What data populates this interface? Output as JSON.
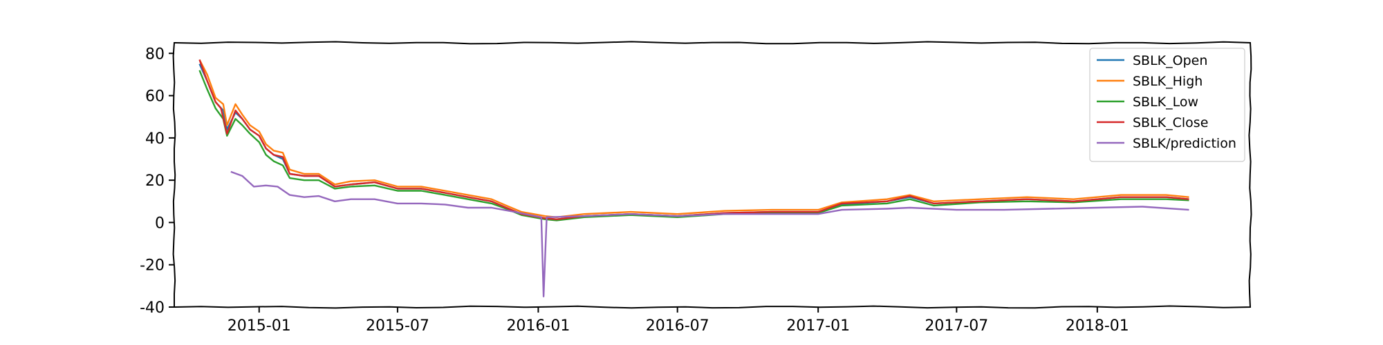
{
  "chart_data": {
    "type": "line",
    "title": "",
    "xlabel": "",
    "ylabel": "",
    "xlim": [
      "2014-09-12",
      "2018-07-20"
    ],
    "ylim": [
      -40,
      85
    ],
    "yticks": [
      80,
      60,
      40,
      20,
      0,
      -20,
      -40
    ],
    "xticks": [
      "2015-01",
      "2015-07",
      "2016-01",
      "2016-07",
      "2017-01",
      "2017-07",
      "2018-01"
    ],
    "grid": false,
    "legend_position": "top-right",
    "series": [
      {
        "name": "SBLK_Open",
        "color": "#1f77b4",
        "points": [
          [
            "2014-10-15",
            75
          ],
          [
            "2014-10-25",
            67
          ],
          [
            "2014-11-05",
            57
          ],
          [
            "2014-11-15",
            53
          ],
          [
            "2014-11-20",
            44
          ],
          [
            "2014-12-01",
            52
          ],
          [
            "2014-12-10",
            49
          ],
          [
            "2014-12-20",
            44
          ],
          [
            "2015-01-01",
            41
          ],
          [
            "2015-01-10",
            35
          ],
          [
            "2015-01-20",
            32
          ],
          [
            "2015-02-01",
            30
          ],
          [
            "2015-02-10",
            23
          ],
          [
            "2015-03-01",
            22
          ],
          [
            "2015-03-20",
            22
          ],
          [
            "2015-04-10",
            17
          ],
          [
            "2015-05-01",
            18
          ],
          [
            "2015-06-01",
            19
          ],
          [
            "2015-07-01",
            16
          ],
          [
            "2015-08-01",
            16
          ],
          [
            "2015-09-01",
            14
          ],
          [
            "2015-10-01",
            12
          ],
          [
            "2015-11-01",
            10
          ],
          [
            "2015-11-20",
            7
          ],
          [
            "2015-12-10",
            4
          ],
          [
            "2016-01-10",
            2
          ],
          [
            "2016-01-25",
            1.5
          ],
          [
            "2016-03-01",
            3
          ],
          [
            "2016-05-01",
            4
          ],
          [
            "2016-07-01",
            3
          ],
          [
            "2016-09-01",
            4.5
          ],
          [
            "2016-11-01",
            5
          ],
          [
            "2017-01-01",
            5
          ],
          [
            "2017-02-01",
            8.5
          ],
          [
            "2017-04-01",
            10
          ],
          [
            "2017-05-01",
            12
          ],
          [
            "2017-06-01",
            9
          ],
          [
            "2017-08-01",
            10
          ],
          [
            "2017-10-01",
            11
          ],
          [
            "2017-12-01",
            10
          ],
          [
            "2018-02-01",
            12
          ],
          [
            "2018-04-01",
            12
          ],
          [
            "2018-05-01",
            11
          ]
        ]
      },
      {
        "name": "SBLK_High",
        "color": "#ff7f0e",
        "points": [
          [
            "2014-10-15",
            77
          ],
          [
            "2014-10-25",
            70
          ],
          [
            "2014-11-05",
            59
          ],
          [
            "2014-11-15",
            56
          ],
          [
            "2014-11-20",
            46
          ],
          [
            "2014-12-01",
            56
          ],
          [
            "2014-12-10",
            51
          ],
          [
            "2014-12-20",
            46
          ],
          [
            "2015-01-01",
            43
          ],
          [
            "2015-01-10",
            37
          ],
          [
            "2015-01-20",
            34
          ],
          [
            "2015-02-01",
            33
          ],
          [
            "2015-02-10",
            25
          ],
          [
            "2015-03-01",
            23
          ],
          [
            "2015-03-20",
            23
          ],
          [
            "2015-04-10",
            18
          ],
          [
            "2015-05-01",
            19.5
          ],
          [
            "2015-06-01",
            20
          ],
          [
            "2015-07-01",
            17
          ],
          [
            "2015-08-01",
            17
          ],
          [
            "2015-09-01",
            15
          ],
          [
            "2015-10-01",
            13
          ],
          [
            "2015-11-01",
            11
          ],
          [
            "2015-11-20",
            8
          ],
          [
            "2015-12-10",
            5
          ],
          [
            "2016-01-10",
            3
          ],
          [
            "2016-01-25",
            2.5
          ],
          [
            "2016-03-01",
            4
          ],
          [
            "2016-05-01",
            5
          ],
          [
            "2016-07-01",
            4
          ],
          [
            "2016-09-01",
            5.5
          ],
          [
            "2016-11-01",
            6
          ],
          [
            "2017-01-01",
            6
          ],
          [
            "2017-02-01",
            9.5
          ],
          [
            "2017-04-01",
            11
          ],
          [
            "2017-05-01",
            13
          ],
          [
            "2017-06-01",
            10
          ],
          [
            "2017-08-01",
            11
          ],
          [
            "2017-10-01",
            12
          ],
          [
            "2017-12-01",
            11
          ],
          [
            "2018-02-01",
            13
          ],
          [
            "2018-04-01",
            13
          ],
          [
            "2018-05-01",
            12
          ]
        ]
      },
      {
        "name": "SBLK_Low",
        "color": "#2ca02c",
        "points": [
          [
            "2014-10-15",
            72
          ],
          [
            "2014-10-25",
            63
          ],
          [
            "2014-11-05",
            54
          ],
          [
            "2014-11-15",
            49
          ],
          [
            "2014-11-20",
            41
          ],
          [
            "2014-12-01",
            49
          ],
          [
            "2014-12-10",
            46
          ],
          [
            "2014-12-20",
            42
          ],
          [
            "2015-01-01",
            38
          ],
          [
            "2015-01-10",
            32
          ],
          [
            "2015-01-20",
            29
          ],
          [
            "2015-02-01",
            27
          ],
          [
            "2015-02-10",
            21
          ],
          [
            "2015-03-01",
            20
          ],
          [
            "2015-03-20",
            20
          ],
          [
            "2015-04-10",
            16
          ],
          [
            "2015-05-01",
            17
          ],
          [
            "2015-06-01",
            17.5
          ],
          [
            "2015-07-01",
            15
          ],
          [
            "2015-08-01",
            15
          ],
          [
            "2015-09-01",
            13
          ],
          [
            "2015-10-01",
            11
          ],
          [
            "2015-11-01",
            9
          ],
          [
            "2015-11-20",
            6.5
          ],
          [
            "2015-12-10",
            3.5
          ],
          [
            "2016-01-10",
            1.5
          ],
          [
            "2016-01-25",
            1
          ],
          [
            "2016-03-01",
            2.5
          ],
          [
            "2016-05-01",
            3.5
          ],
          [
            "2016-07-01",
            2.5
          ],
          [
            "2016-09-01",
            4
          ],
          [
            "2016-11-01",
            4.5
          ],
          [
            "2017-01-01",
            4.5
          ],
          [
            "2017-02-01",
            8
          ],
          [
            "2017-04-01",
            9
          ],
          [
            "2017-05-01",
            11
          ],
          [
            "2017-06-01",
            8
          ],
          [
            "2017-08-01",
            9.5
          ],
          [
            "2017-10-01",
            10
          ],
          [
            "2017-12-01",
            9.5
          ],
          [
            "2018-02-01",
            11
          ],
          [
            "2018-04-01",
            11
          ],
          [
            "2018-05-01",
            10.5
          ]
        ]
      },
      {
        "name": "SBLK_Close",
        "color": "#d62728",
        "points": [
          [
            "2014-10-15",
            77
          ],
          [
            "2014-10-20",
            72
          ],
          [
            "2014-10-25",
            67
          ],
          [
            "2014-11-05",
            57
          ],
          [
            "2014-11-12",
            54
          ],
          [
            "2014-11-20",
            42
          ],
          [
            "2014-12-01",
            53
          ],
          [
            "2014-12-10",
            49
          ],
          [
            "2014-12-20",
            44
          ],
          [
            "2015-01-01",
            41
          ],
          [
            "2015-01-10",
            35
          ],
          [
            "2015-01-20",
            32
          ],
          [
            "2015-02-01",
            31
          ],
          [
            "2015-02-10",
            23
          ],
          [
            "2015-03-01",
            22
          ],
          [
            "2015-03-20",
            22
          ],
          [
            "2015-04-10",
            17
          ],
          [
            "2015-05-01",
            18
          ],
          [
            "2015-06-01",
            19
          ],
          [
            "2015-07-01",
            16
          ],
          [
            "2015-08-01",
            16
          ],
          [
            "2015-09-01",
            14
          ],
          [
            "2015-10-01",
            12
          ],
          [
            "2015-11-01",
            10
          ],
          [
            "2015-11-20",
            7
          ],
          [
            "2015-12-10",
            4
          ],
          [
            "2016-01-10",
            2
          ],
          [
            "2016-01-25",
            1.5
          ],
          [
            "2016-03-01",
            3
          ],
          [
            "2016-05-01",
            4
          ],
          [
            "2016-07-01",
            3
          ],
          [
            "2016-09-01",
            4.5
          ],
          [
            "2016-11-01",
            5
          ],
          [
            "2017-01-01",
            5
          ],
          [
            "2017-02-01",
            9
          ],
          [
            "2017-04-01",
            10
          ],
          [
            "2017-05-01",
            12.5
          ],
          [
            "2017-06-01",
            9
          ],
          [
            "2017-08-01",
            10
          ],
          [
            "2017-10-01",
            11
          ],
          [
            "2017-12-01",
            10
          ],
          [
            "2018-02-01",
            12
          ],
          [
            "2018-04-01",
            12
          ],
          [
            "2018-05-01",
            11
          ]
        ]
      },
      {
        "name": "SBLK/prediction",
        "color": "#9467bd",
        "points": [
          [
            "2014-11-25",
            24
          ],
          [
            "2014-12-10",
            22
          ],
          [
            "2014-12-25",
            17
          ],
          [
            "2015-01-10",
            17.5
          ],
          [
            "2015-01-25",
            17
          ],
          [
            "2015-02-10",
            13
          ],
          [
            "2015-03-01",
            12
          ],
          [
            "2015-03-20",
            12.5
          ],
          [
            "2015-04-10",
            10
          ],
          [
            "2015-05-01",
            11
          ],
          [
            "2015-06-01",
            11
          ],
          [
            "2015-07-01",
            9
          ],
          [
            "2015-08-01",
            9
          ],
          [
            "2015-09-01",
            8.5
          ],
          [
            "2015-10-01",
            7
          ],
          [
            "2015-11-01",
            7
          ],
          [
            "2015-12-01",
            5
          ],
          [
            "2016-01-05",
            2.5
          ],
          [
            "2016-01-08",
            -35
          ],
          [
            "2016-01-12",
            2.5
          ],
          [
            "2016-03-01",
            3
          ],
          [
            "2016-05-01",
            4
          ],
          [
            "2016-07-01",
            3
          ],
          [
            "2016-09-01",
            4
          ],
          [
            "2016-11-01",
            4
          ],
          [
            "2017-01-01",
            4
          ],
          [
            "2017-02-01",
            6
          ],
          [
            "2017-04-01",
            6.5
          ],
          [
            "2017-05-01",
            7
          ],
          [
            "2017-07-01",
            6
          ],
          [
            "2017-09-01",
            6
          ],
          [
            "2017-11-01",
            6.5
          ],
          [
            "2018-01-01",
            7
          ],
          [
            "2018-03-01",
            7.5
          ],
          [
            "2018-05-01",
            6
          ]
        ]
      }
    ]
  }
}
